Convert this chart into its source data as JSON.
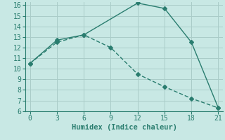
{
  "line1_x": [
    0,
    3,
    6,
    12,
    15,
    18,
    21
  ],
  "line1_y": [
    10.5,
    12.7,
    13.2,
    16.2,
    15.7,
    12.5,
    6.3
  ],
  "line2_x": [
    0,
    3,
    6,
    9,
    12,
    15,
    18,
    21
  ],
  "line2_y": [
    10.5,
    12.5,
    13.2,
    12.0,
    9.5,
    8.3,
    7.2,
    6.3
  ],
  "color": "#2a7d6f",
  "bg_color": "#c8e8e4",
  "grid_color": "#aaccc8",
  "axis_color": "#2a7d6f",
  "xlabel": "Humidex (Indice chaleur)",
  "xlim": [
    -0.5,
    21.5
  ],
  "ylim": [
    6,
    16.3
  ],
  "yticks": [
    6,
    7,
    8,
    9,
    10,
    11,
    12,
    13,
    14,
    15,
    16
  ],
  "xticks": [
    0,
    3,
    6,
    9,
    12,
    15,
    18,
    21
  ],
  "markersize": 3,
  "linewidth": 1.0
}
